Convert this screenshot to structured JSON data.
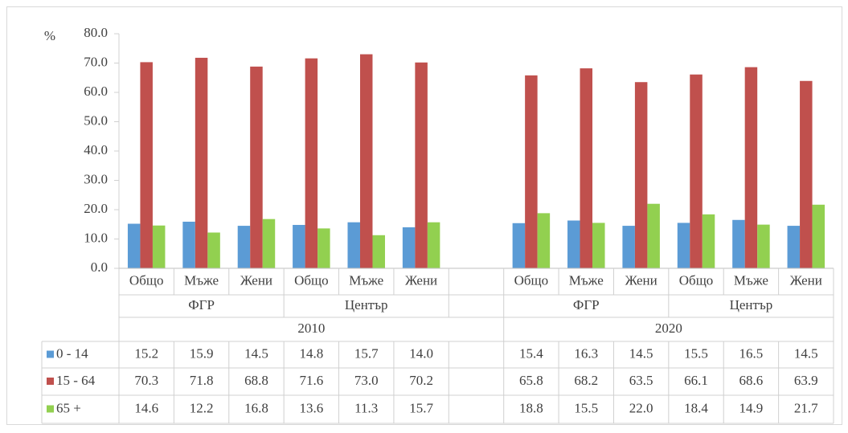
{
  "chart_data": {
    "type": "bar",
    "y_unit": "%",
    "categories": [
      "Общо",
      "Мъже",
      "Жени",
      "Общо",
      "Мъже",
      "Жени",
      null,
      "Общо",
      "Мъже",
      "Жени",
      "Общо",
      "Мъже",
      "Жени"
    ],
    "groups": [
      "ФГР",
      "Център",
      null,
      "ФГР",
      "Център"
    ],
    "years": [
      "2010",
      "2020"
    ],
    "series": [
      {
        "name": "0 - 14",
        "color": "#5b9bd5",
        "values": [
          15.2,
          15.9,
          14.5,
          14.8,
          15.7,
          14.0,
          null,
          15.4,
          16.3,
          14.5,
          15.5,
          16.5,
          14.5
        ],
        "value_labels": [
          "15.2",
          "15.9",
          "14.5",
          "14.8",
          "15.7",
          "14.0",
          null,
          "15.4",
          "16.3",
          "14.5",
          "15.5",
          "16.5",
          "14.5"
        ]
      },
      {
        "name": "15 - 64",
        "color": "#c0504d",
        "values": [
          70.3,
          71.8,
          68.8,
          71.6,
          73.0,
          70.2,
          null,
          65.8,
          68.2,
          63.5,
          66.1,
          68.6,
          63.9
        ],
        "value_labels": [
          "70.3",
          "71.8",
          "68.8",
          "71.6",
          "73.0",
          "70.2",
          null,
          "65.8",
          "68.2",
          "63.5",
          "66.1",
          "68.6",
          "63.9"
        ]
      },
      {
        "name": "65 +",
        "color": "#92d050",
        "values": [
          14.6,
          12.2,
          16.8,
          13.6,
          11.3,
          15.7,
          null,
          18.8,
          15.5,
          22.0,
          18.4,
          14.9,
          21.7
        ],
        "value_labels": [
          "14.6",
          "12.2",
          "16.8",
          "13.6",
          "11.3",
          "15.7",
          null,
          "18.8",
          "15.5",
          "22.0",
          "18.4",
          "14.9",
          "21.7"
        ]
      }
    ],
    "ylim": [
      0,
      80
    ],
    "yticks": [
      {
        "value": 0,
        "label": "0.0"
      },
      {
        "value": 10,
        "label": "10.0"
      },
      {
        "value": 20,
        "label": "20.0"
      },
      {
        "value": 30,
        "label": "30.0"
      },
      {
        "value": 40,
        "label": "40.0"
      },
      {
        "value": 50,
        "label": "50.0"
      },
      {
        "value": 60,
        "label": "60.0"
      },
      {
        "value": 70,
        "label": "70.0"
      },
      {
        "value": 80,
        "label": "80.0"
      }
    ],
    "grid": false
  }
}
